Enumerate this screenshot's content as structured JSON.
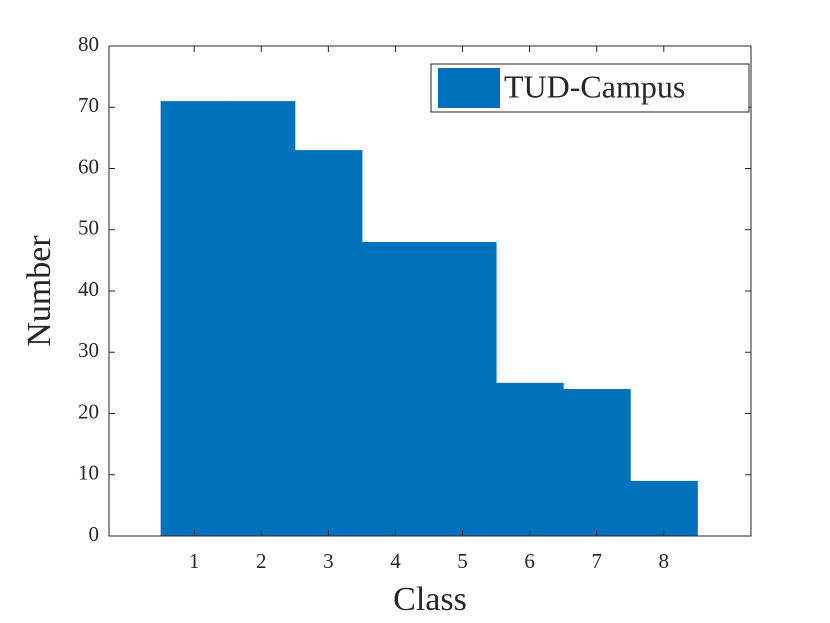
{
  "chart_data": {
    "type": "bar",
    "x": [
      1,
      2,
      3,
      4,
      5,
      6,
      7,
      8
    ],
    "series": [
      {
        "name": "TUD-Campus",
        "color": "#0072bd",
        "values": [
          71,
          71,
          63,
          48,
          48,
          25,
          24,
          9
        ]
      }
    ],
    "xlabel": "Class",
    "ylabel": "Number",
    "xlim": [
      -0.27,
      9.3
    ],
    "xticks": [
      1,
      2,
      3,
      4,
      5,
      6,
      7,
      8
    ],
    "ylim": [
      0,
      80
    ],
    "yticks": [
      0,
      10,
      20,
      30,
      40,
      50,
      60,
      70,
      80
    ],
    "legend": "northeast"
  }
}
